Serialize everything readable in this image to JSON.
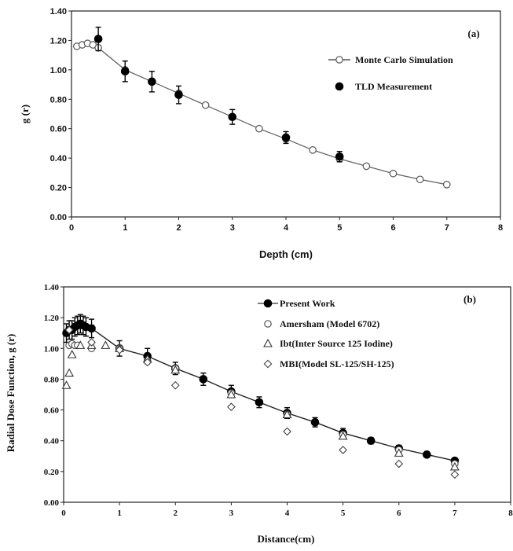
{
  "chart_data": [
    {
      "type": "line",
      "panel_label": "(a)",
      "xlabel": "Depth (cm)",
      "ylabel": "g (r)",
      "xlim": [
        0,
        8
      ],
      "ylim": [
        0,
        1.4
      ],
      "xticks": [
        "0",
        "1",
        "2",
        "3",
        "4",
        "5",
        "6",
        "7",
        "8"
      ],
      "yticks": [
        "0.00",
        "0.20",
        "0.40",
        "0.60",
        "0.80",
        "1.00",
        "1.20",
        "1.40"
      ],
      "grid": false,
      "legend_position": "top-right",
      "series": [
        {
          "name": "Monte Carlo Simulation",
          "marker": "open-circle",
          "line": true,
          "x": [
            0.1,
            0.2,
            0.3,
            0.4,
            0.5,
            1,
            1.5,
            2,
            2.5,
            3,
            3.5,
            4,
            4.5,
            5,
            5.5,
            6,
            6.5,
            7
          ],
          "y": [
            1.16,
            1.17,
            1.18,
            1.17,
            1.15,
            1.0,
            0.92,
            0.84,
            0.76,
            0.68,
            0.6,
            0.53,
            0.455,
            0.395,
            0.345,
            0.295,
            0.255,
            0.22
          ]
        },
        {
          "name": "TLD Measurement",
          "marker": "filled-circle",
          "line": false,
          "x": [
            0.5,
            1,
            1.5,
            2,
            3,
            4,
            5
          ],
          "y": [
            1.21,
            0.99,
            0.92,
            0.83,
            0.68,
            0.54,
            0.41
          ],
          "error": [
            0.08,
            0.07,
            0.07,
            0.06,
            0.05,
            0.04,
            0.035
          ]
        }
      ]
    },
    {
      "type": "scatter",
      "panel_label": "(b)",
      "xlabel": "Distance(cm)",
      "ylabel": "Radial Dose Function, g (r)",
      "xlim": [
        0,
        8
      ],
      "ylim": [
        0,
        1.4
      ],
      "xticks": [
        "0",
        "1",
        "2",
        "3",
        "4",
        "5",
        "6",
        "7",
        "8"
      ],
      "yticks": [
        "0.00",
        "0.20",
        "0.40",
        "0.60",
        "0.80",
        "1.00",
        "1.20",
        "1.40"
      ],
      "grid": false,
      "legend_position": "top-right",
      "series": [
        {
          "name": "Present Work",
          "marker": "filled-circle",
          "line": true,
          "x": [
            0.05,
            0.1,
            0.15,
            0.2,
            0.25,
            0.3,
            0.35,
            0.4,
            0.5,
            1,
            1.5,
            2,
            2.5,
            3,
            3.5,
            4,
            4.5,
            5,
            5.5,
            6,
            6.5,
            7
          ],
          "y": [
            1.1,
            1.12,
            1.12,
            1.14,
            1.15,
            1.16,
            1.15,
            1.14,
            1.13,
            1.0,
            0.95,
            0.87,
            0.8,
            0.72,
            0.65,
            0.58,
            0.52,
            0.45,
            0.4,
            0.35,
            0.31,
            0.27
          ],
          "error": [
            0.06,
            0.06,
            0.06,
            0.06,
            0.06,
            0.06,
            0.06,
            0.06,
            0.06,
            0.05,
            0.05,
            0.04,
            0.04,
            0.04,
            0.035,
            0.035,
            0.03,
            0.03,
            0.02,
            0.02,
            0.015,
            0.015
          ]
        },
        {
          "name": "Amersham (Model 6702)",
          "marker": "open-circle",
          "line": false,
          "x": [
            0.1,
            0.15,
            0.2,
            0.25,
            0.5,
            1,
            1.5,
            2,
            3,
            4,
            5,
            6,
            7
          ],
          "y": [
            1.02,
            1.03,
            1.02,
            1.02,
            1.0,
            1.0,
            0.92,
            0.87,
            0.71,
            0.57,
            0.44,
            0.34,
            0.25
          ]
        },
        {
          "name": "Ibt(Inter Source 125 Iodine)",
          "marker": "open-triangle",
          "line": false,
          "x": [
            0.05,
            0.1,
            0.15,
            0.3,
            0.5,
            0.75,
            1,
            1.5,
            2,
            3,
            4,
            5,
            6,
            7
          ],
          "y": [
            0.76,
            0.84,
            0.96,
            1.02,
            1.02,
            1.02,
            1.0,
            0.93,
            0.86,
            0.7,
            0.57,
            0.43,
            0.32,
            0.23
          ]
        },
        {
          "name": "MBI(Model SL-125/SH-125)",
          "marker": "open-diamond",
          "line": false,
          "x": [
            0.1,
            0.5,
            1,
            1.5,
            2,
            3,
            4,
            5,
            6,
            7
          ],
          "y": [
            1.12,
            1.04,
            0.99,
            0.91,
            0.76,
            0.62,
            0.46,
            0.34,
            0.25,
            0.18
          ]
        }
      ]
    }
  ]
}
